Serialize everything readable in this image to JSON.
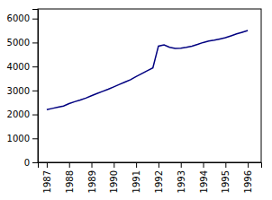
{
  "chart_data": {
    "type": "line",
    "x": [
      1987,
      1987.25,
      1987.5,
      1987.75,
      1988,
      1988.25,
      1988.5,
      1988.75,
      1989,
      1989.25,
      1989.5,
      1989.75,
      1990,
      1990.25,
      1990.5,
      1990.75,
      1991,
      1991.25,
      1991.5,
      1991.75,
      1992,
      1992.25,
      1992.5,
      1992.75,
      1993,
      1993.25,
      1993.5,
      1993.75,
      1994,
      1994.25,
      1994.5,
      1994.75,
      1995,
      1995.25,
      1995.5,
      1995.75,
      1996
    ],
    "values": [
      2200,
      2250,
      2300,
      2350,
      2450,
      2530,
      2600,
      2680,
      2780,
      2870,
      2960,
      3050,
      3150,
      3250,
      3350,
      3450,
      3580,
      3700,
      3820,
      3940,
      4850,
      4900,
      4800,
      4750,
      4760,
      4800,
      4850,
      4920,
      5000,
      5060,
      5100,
      5150,
      5200,
      5280,
      5360,
      5430,
      5500
    ],
    "color": "#000080",
    "xlim": [
      1986.6,
      1996.6
    ],
    "ylim": [
      0,
      6400
    ],
    "xticks": [
      1987,
      1988,
      1989,
      1990,
      1991,
      1992,
      1993,
      1994,
      1995,
      1996
    ],
    "yticks": [
      0,
      1000,
      2000,
      3000,
      4000,
      5000,
      6000
    ]
  }
}
